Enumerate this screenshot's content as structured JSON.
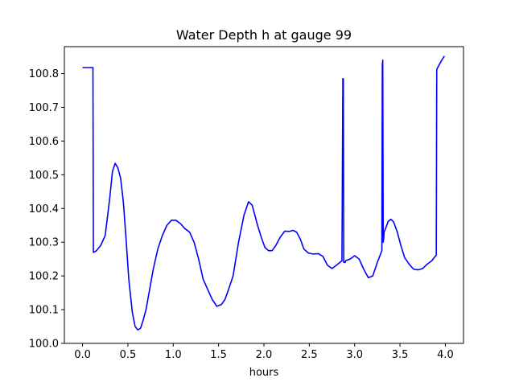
{
  "chart_data": {
    "type": "line",
    "title": "Water Depth h at gauge 99",
    "xlabel": "hours",
    "ylabel": "",
    "xlim": [
      -0.2,
      4.2
    ],
    "ylim": [
      100.0,
      100.88
    ],
    "xticks": [
      0.0,
      0.5,
      1.0,
      1.5,
      2.0,
      2.5,
      3.0,
      3.5,
      4.0
    ],
    "xtick_labels": [
      "0.0",
      "0.5",
      "1.0",
      "1.5",
      "2.0",
      "2.5",
      "3.0",
      "3.5",
      "4.0"
    ],
    "yticks": [
      100.0,
      100.1,
      100.2,
      100.3,
      100.4,
      100.5,
      100.6,
      100.7,
      100.8
    ],
    "ytick_labels": [
      "100.0",
      "100.1",
      "100.2",
      "100.3",
      "100.4",
      "100.5",
      "100.6",
      "100.7",
      "100.8"
    ],
    "grid": false,
    "series": [
      {
        "color": "#0000ff",
        "x": [
          0.0,
          0.11,
          0.115,
          0.12,
          0.15,
          0.2,
          0.25,
          0.3,
          0.33,
          0.36,
          0.39,
          0.42,
          0.45,
          0.48,
          0.51,
          0.55,
          0.58,
          0.61,
          0.64,
          0.67,
          0.7,
          0.74,
          0.78,
          0.83,
          0.88,
          0.93,
          0.98,
          1.03,
          1.08,
          1.13,
          1.18,
          1.23,
          1.28,
          1.33,
          1.38,
          1.43,
          1.48,
          1.53,
          1.57,
          1.61,
          1.66,
          1.72,
          1.78,
          1.83,
          1.87,
          1.9,
          1.93,
          1.97,
          2.01,
          2.05,
          2.09,
          2.13,
          2.18,
          2.23,
          2.28,
          2.32,
          2.36,
          2.4,
          2.44,
          2.49,
          2.54,
          2.6,
          2.65,
          2.7,
          2.75,
          2.8,
          2.86,
          2.87,
          2.875,
          2.88,
          2.885,
          2.895,
          2.9,
          2.95,
          3.0,
          3.05,
          3.1,
          3.15,
          3.2,
          3.25,
          3.3,
          3.305,
          3.31,
          3.315,
          3.32,
          3.325,
          3.34,
          3.37,
          3.4,
          3.43,
          3.47,
          3.51,
          3.55,
          3.6,
          3.65,
          3.7,
          3.75,
          3.8,
          3.85,
          3.9,
          3.905,
          3.91,
          3.93,
          3.96,
          3.99
        ],
        "values": [
          100.818,
          100.818,
          100.818,
          100.27,
          100.274,
          100.29,
          100.32,
          100.43,
          100.51,
          100.534,
          100.52,
          100.49,
          100.42,
          100.31,
          100.19,
          100.09,
          100.05,
          100.04,
          100.045,
          100.07,
          100.1,
          100.16,
          100.22,
          100.28,
          100.32,
          100.35,
          100.365,
          100.365,
          100.355,
          100.34,
          100.33,
          100.3,
          100.25,
          100.19,
          100.16,
          100.13,
          100.11,
          100.115,
          100.13,
          100.16,
          100.2,
          100.3,
          100.38,
          100.42,
          100.41,
          100.38,
          100.35,
          100.315,
          100.285,
          100.275,
          100.275,
          100.29,
          100.315,
          100.333,
          100.332,
          100.335,
          100.33,
          100.31,
          100.28,
          100.268,
          100.265,
          100.266,
          100.258,
          100.232,
          100.222,
          100.232,
          100.245,
          100.785,
          100.785,
          100.24,
          100.24,
          100.24,
          100.245,
          100.25,
          100.26,
          100.25,
          100.22,
          100.195,
          100.2,
          100.24,
          100.275,
          100.825,
          100.84,
          100.3,
          100.31,
          100.33,
          100.34,
          100.362,
          100.368,
          100.36,
          100.33,
          100.29,
          100.255,
          100.235,
          100.22,
          100.218,
          100.222,
          100.235,
          100.245,
          100.262,
          100.812,
          100.815,
          100.825,
          100.84,
          100.852
        ]
      }
    ]
  }
}
